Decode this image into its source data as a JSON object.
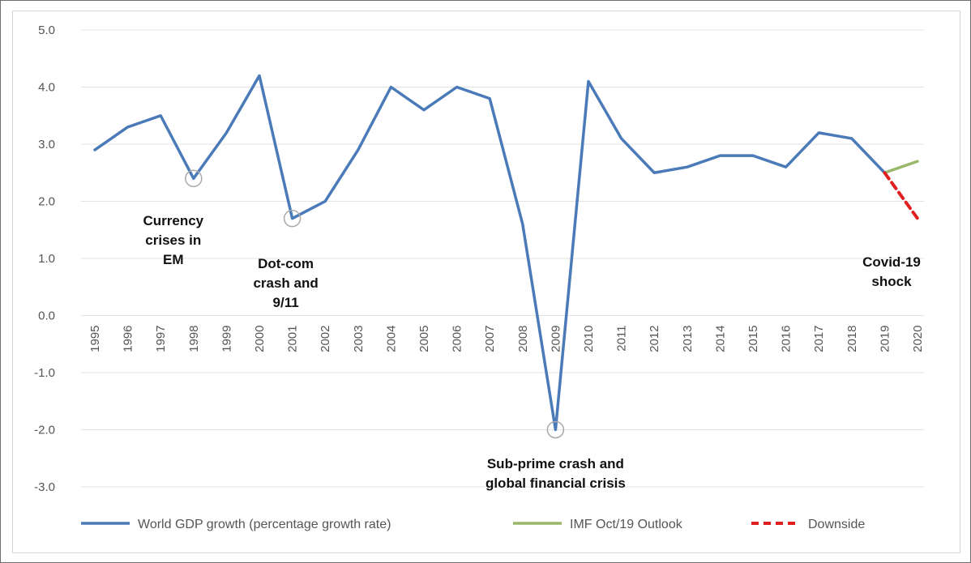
{
  "chart_data": {
    "type": "line",
    "x": [
      1995,
      1996,
      1997,
      1998,
      1999,
      2000,
      2001,
      2002,
      2003,
      2004,
      2005,
      2006,
      2007,
      2008,
      2009,
      2010,
      2011,
      2012,
      2013,
      2014,
      2015,
      2016,
      2017,
      2018,
      2019,
      2020
    ],
    "x_tick_labels": [
      "1995",
      "1996",
      "1997",
      "1998",
      "1999",
      "2000",
      "2001",
      "2002",
      "2003",
      "2004",
      "2005",
      "2006",
      "2007",
      "2008",
      "2009",
      "2010",
      "2011",
      "2012",
      "2013",
      "2014",
      "2015",
      "2016",
      "2017",
      "2018",
      "2019",
      "2020"
    ],
    "y_tick_labels": [
      "5.0",
      "4.0",
      "3.0",
      "2.0",
      "1.0",
      "0.0",
      "-1.0",
      "-2.0",
      "-3.0"
    ],
    "ylim": [
      -3.0,
      5.0
    ],
    "grid": true,
    "legend_position": "bottom",
    "series": [
      {
        "name": "World GDP growth (percentage growth rate)",
        "color": "#4a7ab8",
        "style": "solid",
        "x": [
          1995,
          1996,
          1997,
          1998,
          1999,
          2000,
          2001,
          2002,
          2003,
          2004,
          2005,
          2006,
          2007,
          2008,
          2009,
          2010,
          2011,
          2012,
          2013,
          2014,
          2015,
          2016,
          2017,
          2018,
          2019
        ],
        "values": [
          2.9,
          3.3,
          3.5,
          2.4,
          3.2,
          4.2,
          1.7,
          2.0,
          2.9,
          4.0,
          3.6,
          4.0,
          3.8,
          1.6,
          -2.0,
          4.1,
          3.1,
          2.5,
          2.6,
          2.8,
          2.8,
          2.6,
          3.2,
          3.1,
          2.5
        ]
      },
      {
        "name": "IMF Oct/19 Outlook",
        "color": "#9ab86a",
        "style": "solid",
        "x": [
          2019,
          2020
        ],
        "values": [
          2.5,
          2.7
        ]
      },
      {
        "name": "Downside",
        "color": "#e02020",
        "style": "dashed",
        "x": [
          2019,
          2020
        ],
        "values": [
          2.5,
          1.7
        ]
      }
    ],
    "annotations": [
      {
        "lines": [
          "Currency",
          "crises in",
          "EM"
        ],
        "x": 1998,
        "y": 2.4
      },
      {
        "lines": [
          "Dot-com",
          "crash and",
          "9/11"
        ],
        "x": 2001,
        "y": 1.7
      },
      {
        "lines": [
          "Sub-prime  crash and",
          "global financial crisis"
        ],
        "x": 2009,
        "y": -2.0
      },
      {
        "lines": [
          "Covid-19",
          "shock"
        ],
        "x": 2019.5,
        "y": 1.0
      }
    ]
  }
}
